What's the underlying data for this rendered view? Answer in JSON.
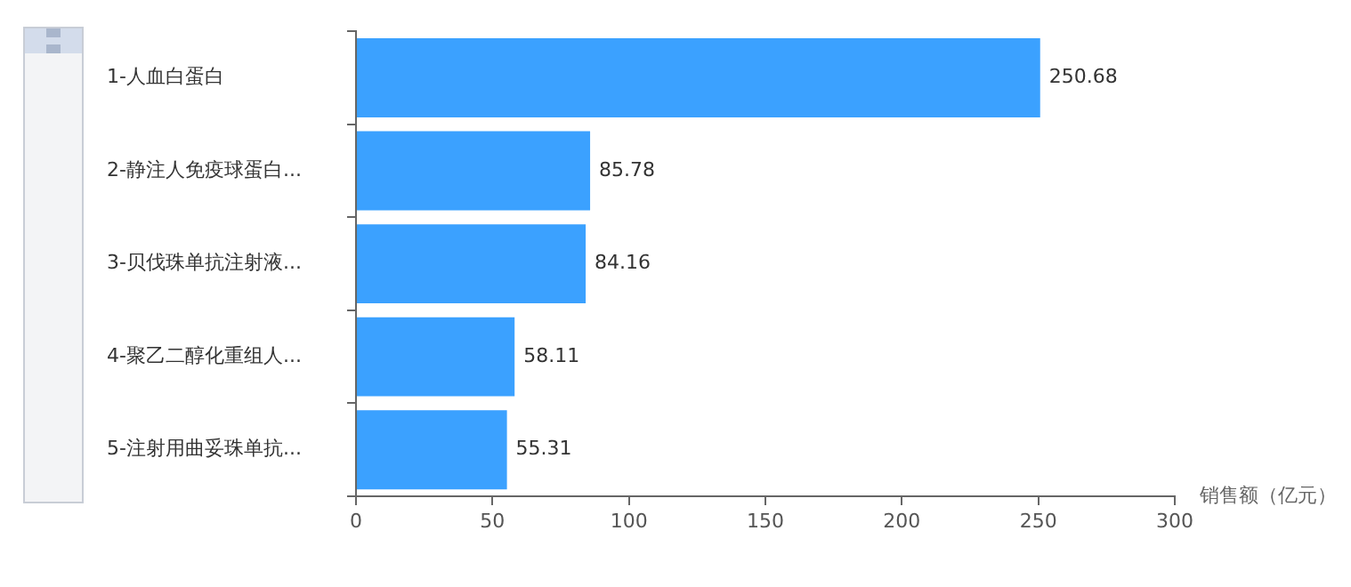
{
  "chart_data": {
    "type": "bar",
    "orientation": "horizontal",
    "xlabel": "销售额（亿元）",
    "categories": [
      "1-人血白蛋白",
      "2-静注人免疫球蛋白...",
      "3-贝伐珠单抗注射液...",
      "4-聚乙二醇化重组人...",
      "5-注射用曲妥珠单抗..."
    ],
    "values": [
      250.68,
      85.78,
      84.16,
      58.11,
      55.31
    ],
    "color": "#3ba1ff",
    "xlim": [
      0,
      300
    ],
    "xticks": [
      0,
      50,
      100,
      150,
      200,
      250,
      300
    ],
    "data_labels": true,
    "grid": false,
    "legend": false
  }
}
